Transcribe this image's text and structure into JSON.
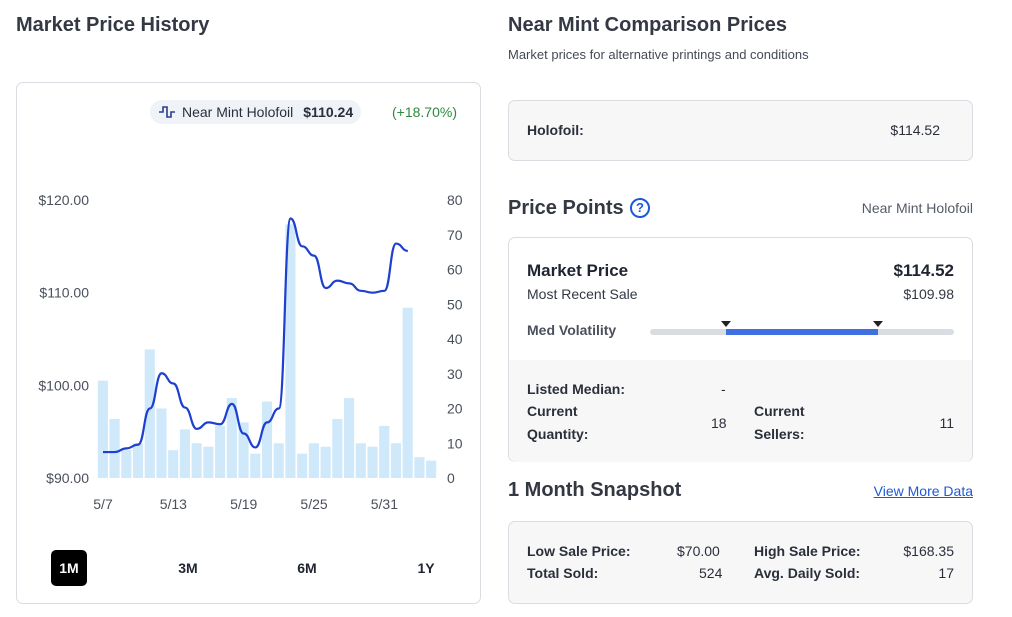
{
  "left_title": "Market Price History",
  "chart_legend": {
    "series_name": "Near Mint Holofoil",
    "price": "$110.24",
    "change": "(+18.70%)",
    "line_color": "#1e3fcf",
    "bar_color": "#cfe9fb"
  },
  "chart_data": {
    "type": "line",
    "title": "",
    "x_ticks": [
      "5/7",
      "5/13",
      "5/19",
      "5/25",
      "5/31"
    ],
    "y_left_ticks": [
      "$120.00",
      "$110.00",
      "$100.00",
      "$90.00"
    ],
    "y_left_range": [
      90,
      120
    ],
    "y_right_ticks": [
      "80",
      "70",
      "60",
      "50",
      "40",
      "30",
      "20",
      "10",
      "0"
    ],
    "y_right_range": [
      0,
      80
    ],
    "x_days": [
      "5/7",
      "5/8",
      "5/9",
      "5/10",
      "5/11",
      "5/12",
      "5/13",
      "5/14",
      "5/15",
      "5/16",
      "5/17",
      "5/18",
      "5/19",
      "5/20",
      "5/21",
      "5/22",
      "5/23",
      "5/24",
      "5/25",
      "5/26",
      "5/27",
      "5/28",
      "5/29",
      "5/30",
      "5/31",
      "6/1",
      "6/2",
      "6/3",
      "6/4",
      "6/5"
    ],
    "series": [
      {
        "name": "Near Mint Holofoil",
        "axis": "left",
        "values": [
          92.8,
          92.8,
          93.2,
          93.6,
          97.5,
          101.3,
          100.2,
          97.6,
          95.3,
          96.0,
          95.8,
          98.0,
          94.8,
          93.3,
          96.0,
          97.5,
          118.0,
          115.0,
          114.0,
          110.5,
          111.3,
          111.0,
          110.2,
          110.0,
          110.2,
          115.3,
          114.5
        ],
        "x_index": [
          0,
          1,
          2,
          3,
          4,
          5,
          6,
          7,
          8,
          9,
          10,
          11,
          12,
          13,
          14,
          15,
          16,
          17,
          18,
          19,
          20,
          21,
          22,
          23,
          24,
          25,
          26
        ]
      },
      {
        "name": "",
        "axis": "right",
        "type": "bar",
        "values": [
          28,
          17,
          8,
          10,
          37,
          20,
          8,
          14,
          10,
          9,
          15,
          23,
          16,
          7,
          22,
          10,
          73,
          7,
          10,
          9,
          17,
          23,
          10,
          9,
          15,
          10,
          49,
          6,
          5
        ]
      }
    ]
  },
  "range_buttons": [
    "1M",
    "3M",
    "6M",
    "1Y"
  ],
  "comparison": {
    "title": "Near Mint Comparison Prices",
    "subtitle": "Market prices for alternative printings and conditions",
    "label": "Holofoil:",
    "value": "$114.52"
  },
  "price_points": {
    "title": "Price Points",
    "help_icon": "question-circle-icon",
    "condition": "Near Mint Holofoil",
    "market_price_label": "Market Price",
    "market_price_value": "$114.52",
    "recent_sale_label": "Most Recent Sale",
    "recent_sale_value": "$109.98",
    "volatility_label": "Med Volatility",
    "volatility_fill": [
      0.25,
      0.75
    ],
    "listed_median_label": "Listed Median:",
    "listed_median_value": "-",
    "current_quantity_label_1": "Current",
    "current_quantity_label_2": "Quantity:",
    "current_quantity_value": "18",
    "current_sellers_label_1": "Current",
    "current_sellers_label_2": "Sellers:",
    "current_sellers_value": "11"
  },
  "snapshot": {
    "title": "1 Month Snapshot",
    "link": "View More Data",
    "low_sale_label": "Low Sale Price:",
    "low_sale_value": "$70.00",
    "high_sale_label": "High Sale Price:",
    "high_sale_value": "$168.35",
    "total_sold_label": "Total Sold:",
    "total_sold_value": "524",
    "avg_daily_label": "Avg. Daily Sold:",
    "avg_daily_value": "17"
  },
  "colors": {
    "accent_blue": "#1b5ad6",
    "volatility_fill": "#3f6fe0",
    "positive_green": "#2d8a3e"
  }
}
